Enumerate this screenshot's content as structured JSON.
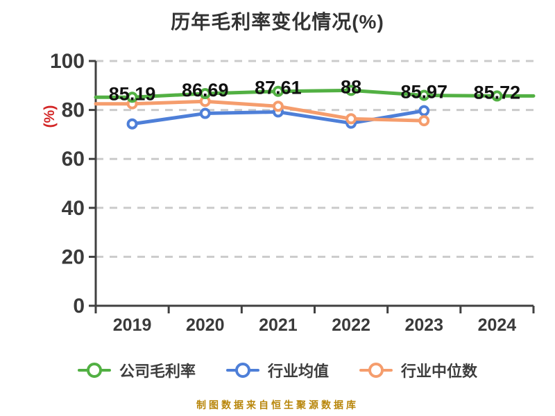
{
  "header": {
    "title": "历年毛利率变化情况(%)"
  },
  "chart_data": {
    "type": "line",
    "title": "历年毛利率变化情况(%)",
    "xlabel": "",
    "ylabel": "(%)",
    "ylabel_color": "#d32626",
    "categories": [
      "2019",
      "2020",
      "2021",
      "2022",
      "2023",
      "2024"
    ],
    "ylim": [
      0,
      100
    ],
    "yticks": [
      0,
      20,
      40,
      60,
      80,
      100
    ],
    "grid": "horizontal-dashed",
    "grid_color": "#cbcbcb",
    "axis_color": "#404040",
    "legend_position": "bottom",
    "series": [
      {
        "name": "公司毛利率",
        "color": "#52b043",
        "values": [
          85.19,
          86.69,
          87.61,
          88,
          85.97,
          85.72
        ],
        "point_labels": [
          "85.19",
          "86.69",
          "87.61",
          "88",
          "85.97",
          "85.72"
        ],
        "extend_left": true,
        "extend_right": true
      },
      {
        "name": "行业均值",
        "color": "#4e7fd8",
        "values": [
          74.3,
          78.6,
          79.2,
          74.6,
          79.7,
          null
        ],
        "point_labels": null,
        "extend_left": false,
        "extend_right": false
      },
      {
        "name": "行业中位数",
        "color": "#f59d6d",
        "values": [
          82.5,
          83.5,
          81.5,
          76.4,
          75.6,
          null
        ],
        "point_labels": null,
        "extend_left": true,
        "extend_right": false
      }
    ]
  },
  "legend": {
    "items": [
      {
        "label": "公司毛利率",
        "color": "#52b043"
      },
      {
        "label": "行业均值",
        "color": "#4e7fd8"
      },
      {
        "label": "行业中位数",
        "color": "#f59d6d"
      }
    ]
  },
  "footer": {
    "text": "制图数据来自恒生聚源数据库",
    "color": "#b8860b"
  }
}
